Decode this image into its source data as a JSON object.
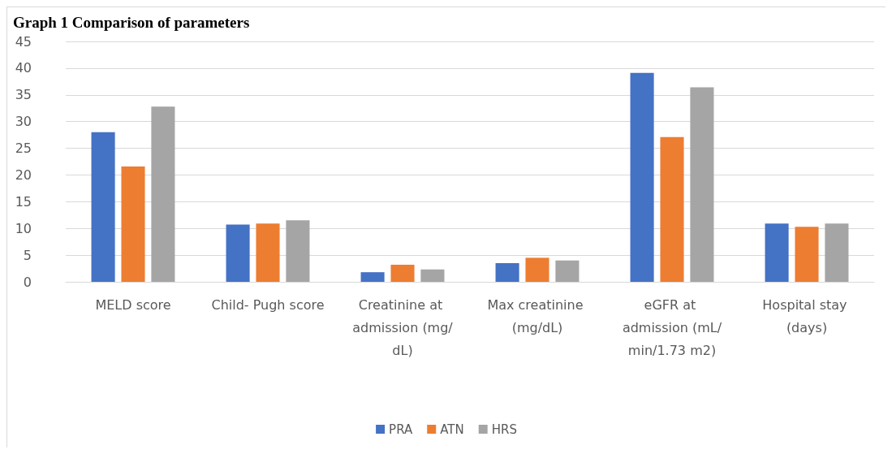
{
  "chart_data": {
    "type": "bar",
    "title": "Graph 1 Comparison of parameters",
    "categories": [
      "MELD score",
      "Child- Pugh score",
      "Creatinine at admission (mg/dL)",
      "Max creatinine (mg/dL)",
      "eGFR at admission (mL/min/1.73 m2)",
      "Hospital stay (days)"
    ],
    "series": [
      {
        "name": "PRA",
        "color": "#4472c4",
        "values": [
          28.0,
          10.7,
          1.8,
          3.5,
          39.1,
          10.9
        ]
      },
      {
        "name": "ATN",
        "color": "#ed7d31",
        "values": [
          21.6,
          10.9,
          3.2,
          4.5,
          27.1,
          10.3
        ]
      },
      {
        "name": "HRS",
        "color": "#a5a5a5",
        "values": [
          32.8,
          11.5,
          2.3,
          4.0,
          36.4,
          10.9
        ]
      }
    ],
    "ylim": [
      0,
      45
    ],
    "yticks": [
      0,
      5,
      10,
      15,
      20,
      25,
      30,
      35,
      40,
      45
    ],
    "grid": "y",
    "legend": "bottom"
  }
}
